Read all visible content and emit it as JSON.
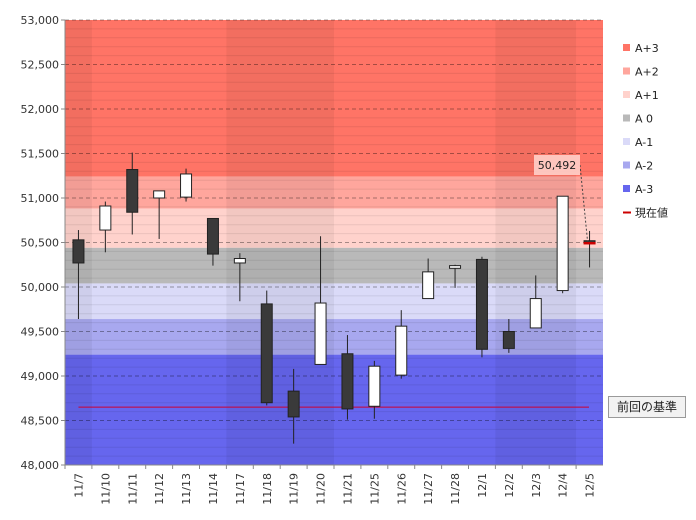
{
  "chart_data": {
    "type": "candlestick",
    "categories": [
      "11/7",
      "11/10",
      "11/11",
      "11/12",
      "11/13",
      "11/14",
      "11/17",
      "11/18",
      "11/19",
      "11/20",
      "11/21",
      "11/25",
      "11/26",
      "11/27",
      "11/28",
      "12/1",
      "12/2",
      "12/3",
      "12/4",
      "12/5"
    ],
    "ohlc": [
      {
        "open": 50530,
        "high": 50640,
        "low": 49640,
        "close": 50270
      },
      {
        "open": 50640,
        "high": 50960,
        "low": 50390,
        "close": 50910
      },
      {
        "open": 51320,
        "high": 51510,
        "low": 50590,
        "close": 50840
      },
      {
        "open": 51000,
        "high": 51080,
        "low": 50540,
        "close": 51080
      },
      {
        "open": 51010,
        "high": 51330,
        "low": 50960,
        "close": 51270
      },
      {
        "open": 50770,
        "high": 50770,
        "low": 50240,
        "close": 50370
      },
      {
        "open": 50270,
        "high": 50380,
        "low": 49840,
        "close": 50320
      },
      {
        "open": 49810,
        "high": 49960,
        "low": 48670,
        "close": 48700
      },
      {
        "open": 48830,
        "high": 49080,
        "low": 48240,
        "close": 48540
      },
      {
        "open": 49130,
        "high": 50570,
        "low": 49130,
        "close": 49820
      },
      {
        "open": 49250,
        "high": 49460,
        "low": 48510,
        "close": 48630
      },
      {
        "open": 48660,
        "high": 49170,
        "low": 48520,
        "close": 49110
      },
      {
        "open": 49010,
        "high": 49740,
        "low": 48970,
        "close": 49560
      },
      {
        "open": 49870,
        "high": 50320,
        "low": 49870,
        "close": 50170
      },
      {
        "open": 50210,
        "high": 50250,
        "low": 49990,
        "close": 50240
      },
      {
        "open": 50310,
        "high": 50340,
        "low": 49210,
        "close": 49300
      },
      {
        "open": 49500,
        "high": 49640,
        "low": 49260,
        "close": 49310
      },
      {
        "open": 49540,
        "high": 50130,
        "low": 49540,
        "close": 49870
      },
      {
        "open": 49960,
        "high": 51020,
        "low": 49930,
        "close": 51020
      },
      {
        "open": 50520,
        "high": 50630,
        "low": 50220,
        "close": 50492
      }
    ],
    "y_ticks": [
      "48,000",
      "48,500",
      "49,000",
      "49,500",
      "50,000",
      "50,500",
      "51,000",
      "51,500",
      "52,000",
      "52,500",
      "53,000"
    ],
    "ylim": [
      48000,
      53000
    ],
    "bands": [
      {
        "name": "A+3",
        "from": 51240,
        "to": 53000,
        "color": "#ff7466"
      },
      {
        "name": "A+2",
        "from": 50880,
        "to": 51240,
        "color": "#ffa69d"
      },
      {
        "name": "A+1",
        "from": 50440,
        "to": 50880,
        "color": "#ffd2cc"
      },
      {
        "name": "A 0",
        "from": 50040,
        "to": 50440,
        "color": "#b9b9b9"
      },
      {
        "name": "A-1",
        "from": 49640,
        "to": 50040,
        "color": "#dadaf8"
      },
      {
        "name": "A-2",
        "from": 49240,
        "to": 49640,
        "color": "#a8a8ef"
      },
      {
        "name": "A-3",
        "from": 48000,
        "to": 49240,
        "color": "#6666ee"
      }
    ],
    "legend": [
      {
        "label": "A+3",
        "color": "#ff7466"
      },
      {
        "label": "A+2",
        "color": "#ffa69d"
      },
      {
        "label": "A+1",
        "color": "#ffd2cc"
      },
      {
        "label": "A 0",
        "color": "#b9b9b9"
      },
      {
        "label": "A-1",
        "color": "#dadaf8"
      },
      {
        "label": "A-2",
        "color": "#a8a8ef"
      },
      {
        "label": "A-3",
        "color": "#6666ee"
      },
      {
        "label": "現在値",
        "color": "#cc0000"
      }
    ],
    "current_value": 50492,
    "current_label": "50,492",
    "reference_value": 48650,
    "reference_label": "前回の基準",
    "grid": true,
    "legend_position": "right"
  }
}
